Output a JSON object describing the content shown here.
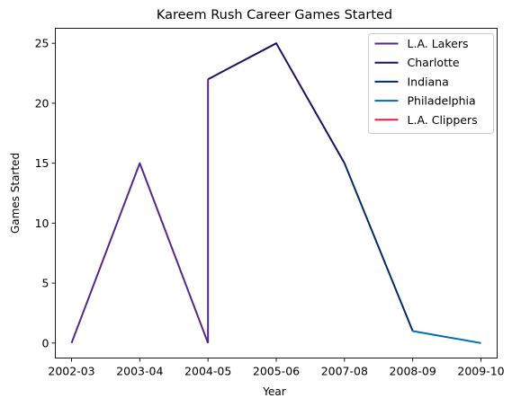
{
  "chart_data": {
    "type": "line",
    "title": "Kareem Rush Career Games Started",
    "xlabel": "Year",
    "ylabel": "Games Started",
    "categories": [
      "2002-03",
      "2003-04",
      "2004-05",
      "2005-06",
      "2007-08",
      "2008-09",
      "2009-10"
    ],
    "ylim": [
      -1.25,
      26.25
    ],
    "yticks": [
      0,
      5,
      10,
      15,
      20,
      25
    ],
    "grid": false,
    "legend_position": "top-right",
    "series": [
      {
        "name": "L.A. Lakers",
        "color": "#55278a",
        "points": [
          [
            "2002-03",
            0
          ],
          [
            "2003-04",
            15
          ],
          [
            "2004-05",
            0
          ]
        ]
      },
      {
        "name": "Charlotte",
        "color": "#1d1060",
        "points": [
          [
            "2004-05",
            22
          ],
          [
            "2005-06",
            25
          ],
          [
            "2007-08",
            15
          ]
        ]
      },
      {
        "name": "Indiana",
        "color": "#002d62",
        "points": [
          [
            "2007-08",
            15
          ],
          [
            "2008-09",
            1
          ]
        ]
      },
      {
        "name": "Philadelphia",
        "color": "#006bb6",
        "points": [
          [
            "2008-09",
            1
          ],
          [
            "2009-10",
            0
          ]
        ]
      },
      {
        "name": "L.A. Clippers",
        "color": "#e31d48",
        "points": []
      }
    ],
    "connector": {
      "color": "#55278a",
      "points": [
        [
          "2004-05",
          0
        ],
        [
          "2004-05",
          22
        ]
      ]
    }
  }
}
